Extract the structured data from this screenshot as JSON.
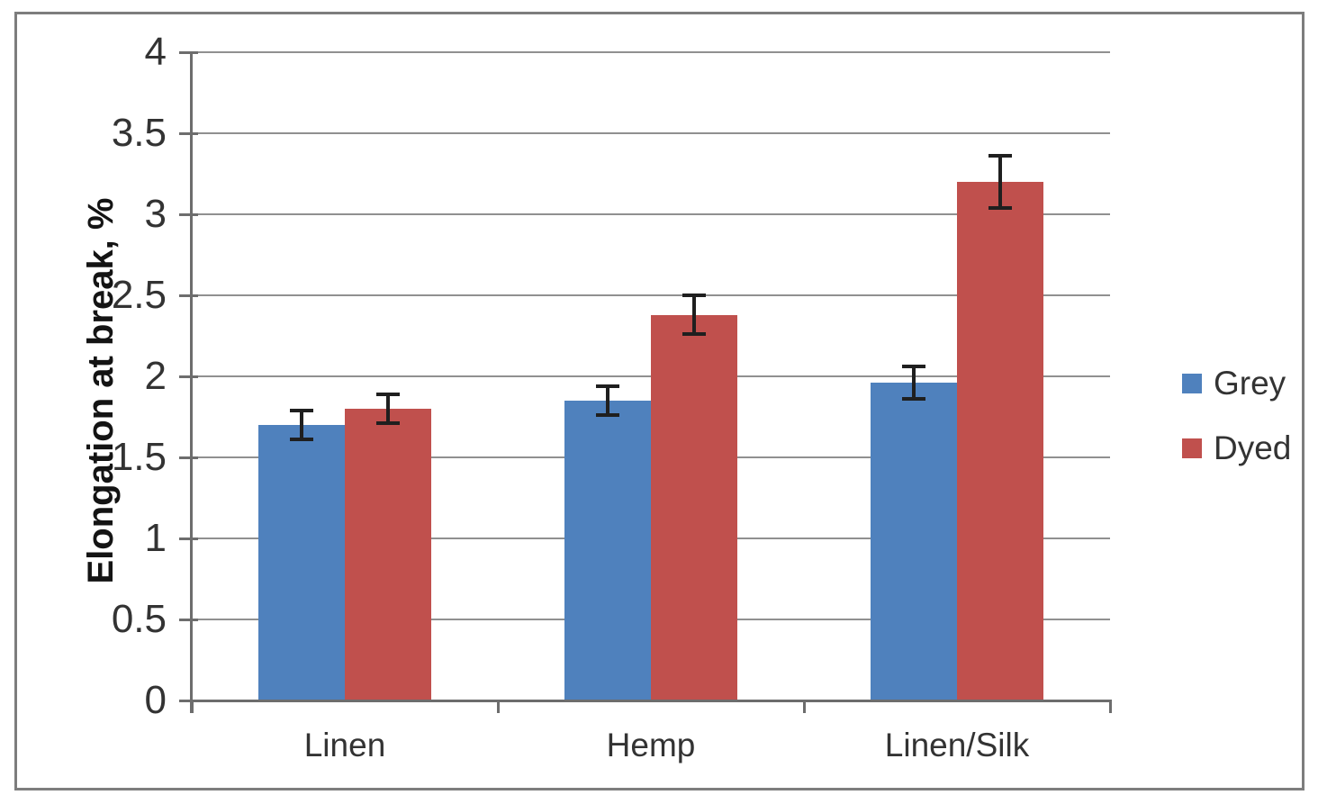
{
  "chart_data": {
    "type": "bar",
    "title": "",
    "categories": [
      "Linen",
      "Hemp",
      "Linen/Silk"
    ],
    "series": [
      {
        "name": "Grey",
        "color": "#4f81bd",
        "values": [
          1.7,
          1.85,
          1.96
        ],
        "errors": [
          0.09,
          0.09,
          0.1
        ]
      },
      {
        "name": "Dyed",
        "color": "#c0504d",
        "values": [
          1.8,
          2.38,
          3.2
        ],
        "errors": [
          0.09,
          0.12,
          0.16
        ]
      }
    ],
    "xlabel": "",
    "ylabel": "Elongation at break, %",
    "ylim": [
      0,
      4
    ],
    "ytick_step": 0.5,
    "ytick_labels": [
      "0",
      "0.5",
      "1",
      "1.5",
      "2",
      "2.5",
      "3",
      "3.5",
      "4"
    ],
    "grid": true,
    "error_bars": true,
    "error_bar_color": "#1f1f1f",
    "legend_position": "right"
  }
}
